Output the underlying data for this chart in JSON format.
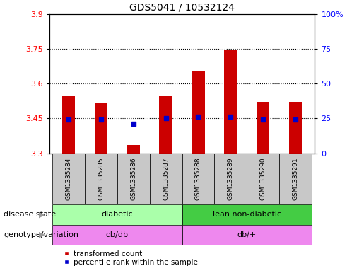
{
  "title": "GDS5041 / 10532124",
  "samples": [
    "GSM1335284",
    "GSM1335285",
    "GSM1335286",
    "GSM1335287",
    "GSM1335288",
    "GSM1335289",
    "GSM1335290",
    "GSM1335291"
  ],
  "transformed_count": [
    3.545,
    3.515,
    3.335,
    3.545,
    3.655,
    3.745,
    3.52,
    3.52
  ],
  "percentile_rank": [
    24,
    24,
    21,
    25,
    26,
    26,
    24,
    24
  ],
  "ylim_left": [
    3.3,
    3.9
  ],
  "ylim_right": [
    0,
    100
  ],
  "yticks_left": [
    3.3,
    3.45,
    3.6,
    3.75,
    3.9
  ],
  "yticks_right": [
    0,
    25,
    50,
    75,
    100
  ],
  "ytick_labels_left": [
    "3.3",
    "3.45",
    "3.6",
    "3.75",
    "3.9"
  ],
  "ytick_labels_right": [
    "0",
    "25",
    "50",
    "75",
    "100%"
  ],
  "hlines": [
    3.45,
    3.6,
    3.75
  ],
  "bar_color": "#cc0000",
  "percentile_color": "#0000cc",
  "bar_bottom": 3.3,
  "bar_width": 0.4,
  "disease_state_groups": [
    {
      "label": "diabetic",
      "start": 0,
      "end": 3,
      "color": "#aaffaa"
    },
    {
      "label": "lean non-diabetic",
      "start": 4,
      "end": 7,
      "color": "#44cc44"
    }
  ],
  "genotype_groups": [
    {
      "label": "db/db",
      "start": 0,
      "end": 3,
      "color": "#ee88ee"
    },
    {
      "label": "db/+",
      "start": 4,
      "end": 7,
      "color": "#ee88ee"
    }
  ],
  "disease_state_label": "disease state",
  "genotype_label": "genotype/variation",
  "legend_items": [
    {
      "label": "transformed count",
      "color": "#cc0000"
    },
    {
      "label": "percentile rank within the sample",
      "color": "#0000cc"
    }
  ],
  "gray_col": "#c8c8c8",
  "plot_bg": "#ffffff"
}
